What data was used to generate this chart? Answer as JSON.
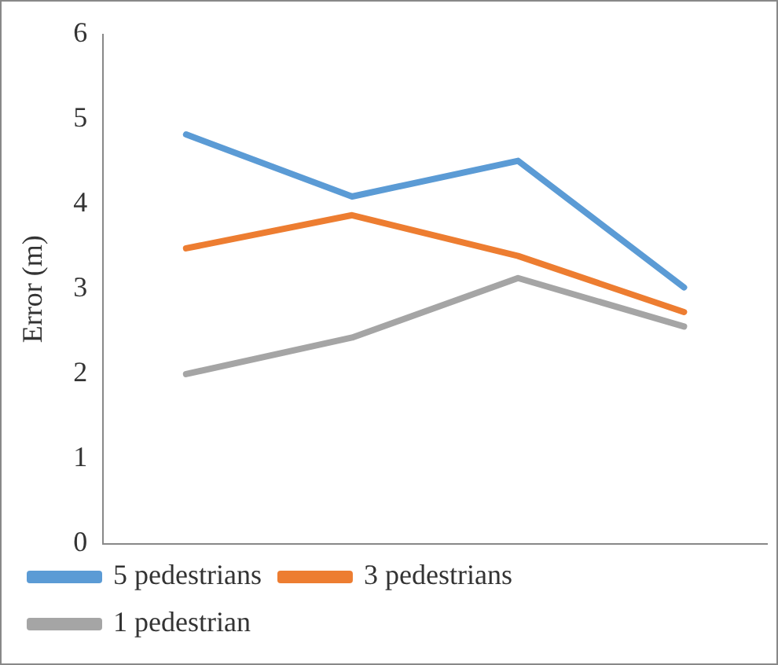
{
  "chart_data": {
    "type": "line",
    "ylabel": "Error (m)",
    "categories": [
      null,
      null,
      null,
      null
    ],
    "series": [
      {
        "name": "5 pedestrians",
        "color": "#5b9bd5",
        "values": [
          4.82,
          4.09,
          4.51,
          3.02
        ]
      },
      {
        "name": "3 pedestrians",
        "color": "#ed7d31",
        "values": [
          3.48,
          3.87,
          3.39,
          2.73
        ]
      },
      {
        "name": "1 pedestrian",
        "color": "#a5a5a5",
        "values": [
          2.0,
          2.43,
          3.13,
          2.56
        ]
      }
    ],
    "ylim": [
      0,
      6
    ],
    "yticks": [
      0,
      1,
      2,
      3,
      4,
      5,
      6
    ],
    "grid": false,
    "legend": "bottom",
    "marker": "none",
    "line_style": "solid"
  }
}
